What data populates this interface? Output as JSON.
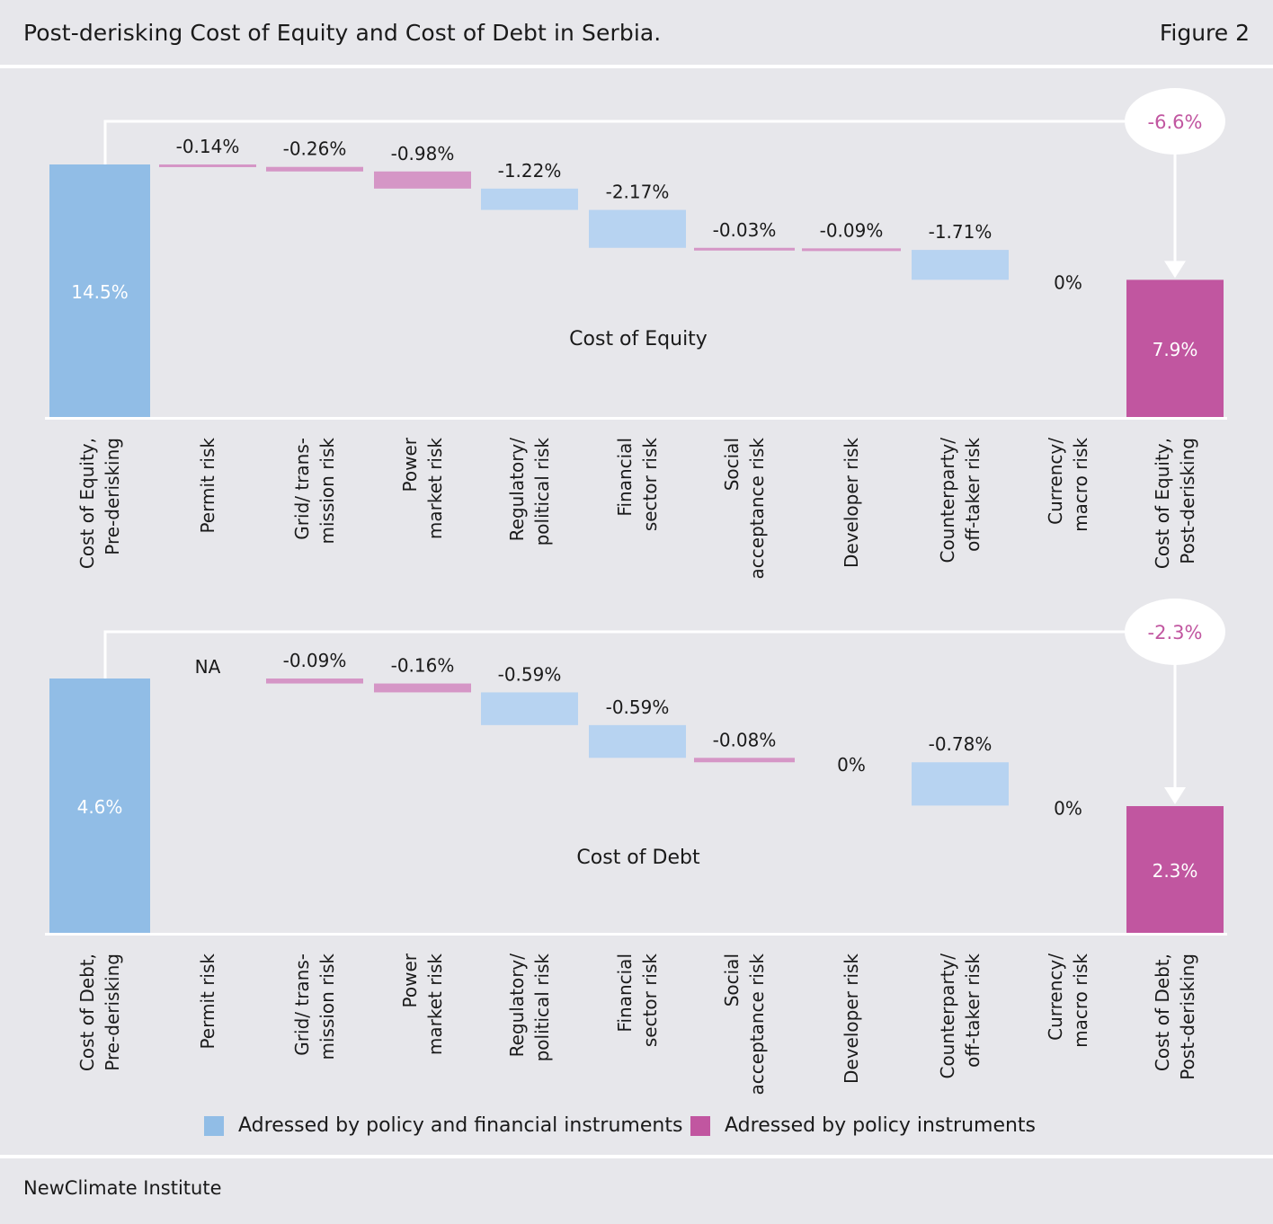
{
  "header": {
    "title": "Post-derisking Cost of Equity and Cost of Debt in Serbia.",
    "figure_label": "Figure 2"
  },
  "colors": {
    "financial": "#91bde6",
    "financial_light": "#b7d3f1",
    "policy": "#c156a0",
    "policy_light": "#d596c6",
    "reduction_text": "#c156a0",
    "background": "#e7e7eb"
  },
  "chart_data": [
    {
      "type": "waterfall",
      "title": "Cost of Equity",
      "categories": [
        "Cost of Equity, Pre-derisking",
        "Permit risk",
        "Grid/ trans-mission risk",
        "Power market risk",
        "Regulatory/ political risk",
        "Financial sector risk",
        "Social acceptance risk",
        "Developer risk",
        "Counterparty/ off-taker risk",
        "Currency/ macro risk",
        "Cost of Equity, Post-derisking"
      ],
      "category_lines": [
        [
          "Cost of Equity,",
          "Pre-derisking"
        ],
        [
          "Permit risk"
        ],
        [
          "Grid/ trans-",
          "mission risk"
        ],
        [
          "Power",
          "market risk"
        ],
        [
          "Regulatory/",
          "political risk"
        ],
        [
          "Financial",
          "sector risk"
        ],
        [
          "Social",
          "acceptance risk"
        ],
        [
          "Developer risk"
        ],
        [
          "Counterparty/",
          "off-taker risk"
        ],
        [
          "Currency/",
          "macro risk"
        ],
        [
          "Cost of Equity,",
          "Post-derisking"
        ]
      ],
      "values": [
        14.5,
        -0.14,
        -0.26,
        -0.98,
        -1.22,
        -2.17,
        -0.03,
        -0.09,
        -1.71,
        0,
        7.9
      ],
      "labels": [
        "14.5%",
        "-0.14%",
        "-0.26%",
        "-0.98%",
        "-1.22%",
        "-2.17%",
        "-0.03%",
        "-0.09%",
        "-1.71%",
        "0%",
        "7.9%"
      ],
      "kinds": [
        "total",
        "delta",
        "delta",
        "delta",
        "delta",
        "delta",
        "delta",
        "delta",
        "delta",
        "delta",
        "total"
      ],
      "instrument": [
        "financial",
        "policy",
        "policy",
        "policy",
        "financial",
        "financial",
        "policy",
        "policy",
        "financial",
        "financial",
        "policy"
      ],
      "total_reduction": "-6.6%",
      "ylim": [
        0,
        15.5
      ]
    },
    {
      "type": "waterfall",
      "title": "Cost of Debt",
      "categories": [
        "Cost of Debt, Pre-derisking",
        "Permit risk",
        "Grid/ trans-mission risk",
        "Power market risk",
        "Regulatory/ political risk",
        "Financial sector risk",
        "Social acceptance risk",
        "Developer risk",
        "Counterparty/ off-taker risk",
        "Currency/ macro risk",
        "Cost of Debt, Post-derisking"
      ],
      "category_lines": [
        [
          "Cost of Debt,",
          "Pre-derisking"
        ],
        [
          "Permit risk"
        ],
        [
          "Grid/ trans-",
          "mission risk"
        ],
        [
          "Power",
          "market risk"
        ],
        [
          "Regulatory/",
          "political risk"
        ],
        [
          "Financial",
          "sector risk"
        ],
        [
          "Social",
          "acceptance risk"
        ],
        [
          "Developer risk"
        ],
        [
          "Counterparty/",
          "off-taker risk"
        ],
        [
          "Currency/",
          "macro risk"
        ],
        [
          "Cost of Debt,",
          "Post-derisking"
        ]
      ],
      "values": [
        4.6,
        null,
        -0.09,
        -0.16,
        -0.59,
        -0.59,
        -0.08,
        0,
        -0.78,
        0,
        2.3
      ],
      "labels": [
        "4.6%",
        "NA",
        "-0.09%",
        "-0.16%",
        "-0.59%",
        "-0.59%",
        "-0.08%",
        "0%",
        "-0.78%",
        "0%",
        "2.3%"
      ],
      "kinds": [
        "total",
        "delta",
        "delta",
        "delta",
        "delta",
        "delta",
        "delta",
        "delta",
        "delta",
        "delta",
        "total"
      ],
      "instrument": [
        "financial",
        "policy",
        "policy",
        "policy",
        "financial",
        "financial",
        "policy",
        "policy",
        "financial",
        "financial",
        "policy"
      ],
      "total_reduction": "-2.3%",
      "ylim": [
        0,
        4.9
      ]
    }
  ],
  "legend": [
    {
      "label": "Adressed by policy and financial instruments",
      "color": "#91bde6"
    },
    {
      "label": "Adressed by policy instruments",
      "color": "#c156a0"
    }
  ],
  "footer": {
    "source": "NewClimate Institute"
  }
}
